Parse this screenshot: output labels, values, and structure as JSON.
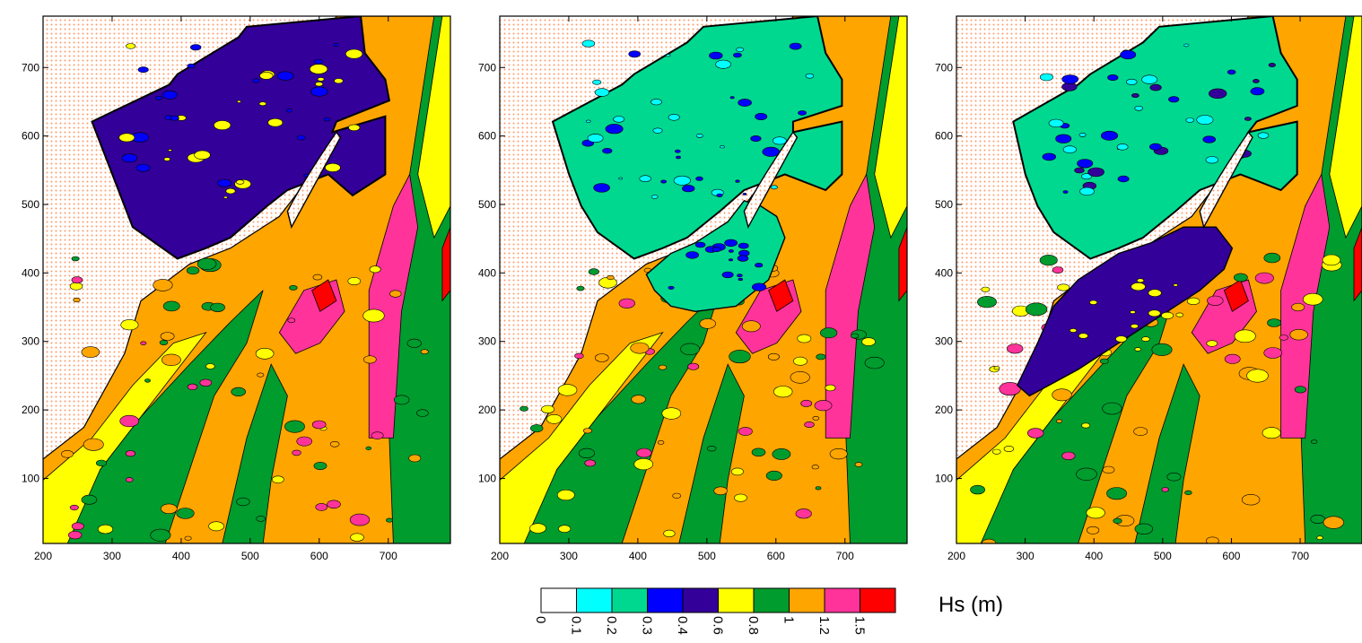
{
  "colors": {
    "land_dots": "#ff9a66",
    "outline": "#000000",
    "levels": [
      "#ffffff",
      "#00ffff",
      "#00d890",
      "#0000ff",
      "#330099",
      "#ffff00",
      "#009c2e",
      "#ffa500",
      "#ff3399",
      "#ff0000"
    ]
  },
  "chart_data": [
    {
      "type": "heatmap",
      "panel": "left",
      "x_ticks": [
        "200",
        "300",
        "400",
        "500",
        "600",
        "700"
      ],
      "y_ticks": [
        "100",
        "200",
        "300",
        "400",
        "500",
        "600",
        "700"
      ],
      "xlim": [
        200,
        790
      ],
      "ylim": [
        5,
        775
      ],
      "dominant_level_basin": "0.4-0.6",
      "dominant_level_offshore": "1-1.2"
    },
    {
      "type": "heatmap",
      "panel": "middle",
      "x_ticks": [
        "200",
        "300",
        "400",
        "500",
        "600",
        "700"
      ],
      "y_ticks": [
        "100",
        "200",
        "300",
        "400",
        "500",
        "600",
        "700"
      ],
      "xlim": [
        200,
        790
      ],
      "ylim": [
        5,
        775
      ],
      "dominant_level_basin": "0.2-0.3",
      "dominant_level_offshore": "1-1.2"
    },
    {
      "type": "heatmap",
      "panel": "right",
      "x_ticks": [
        "200",
        "300",
        "400",
        "500",
        "600",
        "700"
      ],
      "y_ticks": [
        "100",
        "200",
        "300",
        "400",
        "500",
        "600",
        "700"
      ],
      "xlim": [
        200,
        790
      ],
      "ylim": [
        5,
        775
      ],
      "dominant_level_basin": "0.2-0.3",
      "dominant_level_offshore": "1-1.2"
    }
  ],
  "legend": {
    "title": "Hs (m)",
    "levels": [
      "0",
      "0.1",
      "0.2",
      "0.3",
      "0.4",
      "0.6",
      "0.8",
      "1",
      "1.2",
      "1.5"
    ]
  }
}
